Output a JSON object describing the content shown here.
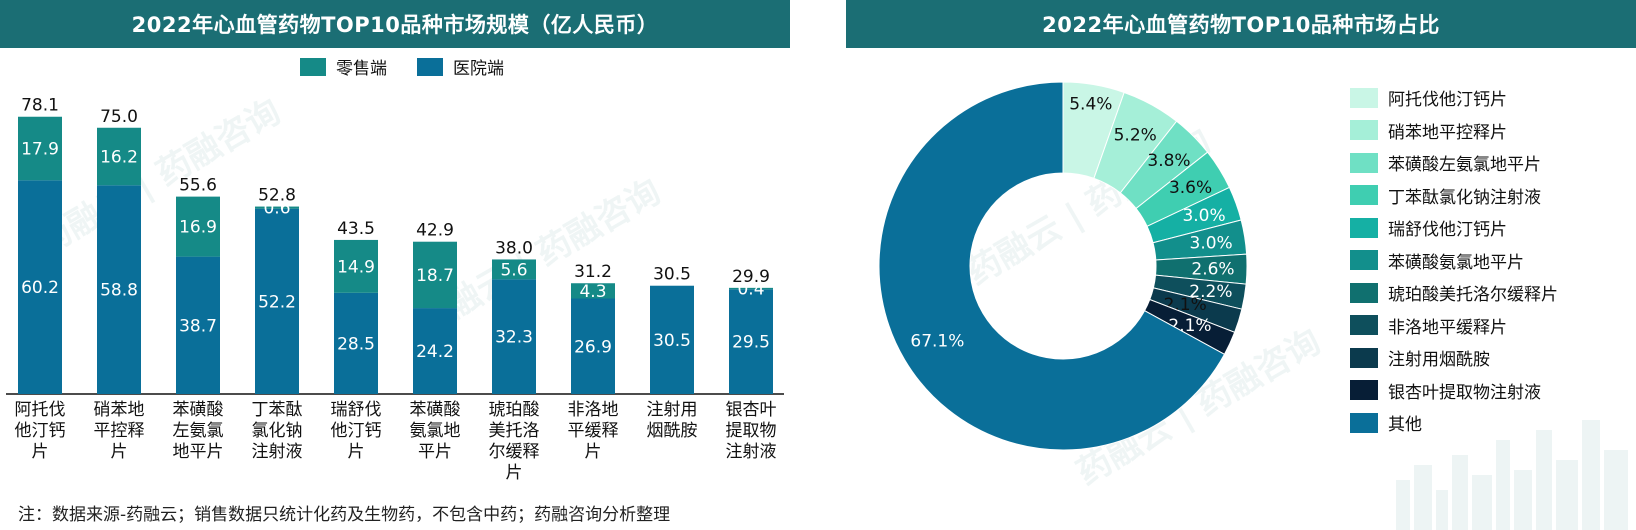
{
  "titles": {
    "bar": "2022年心血管药物TOP10品种市场规模（亿人民币）",
    "pie": "2022年心血管药物TOP10品种市场占比"
  },
  "footnote": "注：数据来源-药融云；销售数据只统计化药及生物药，不包含中药；药融咨询分析整理",
  "watermark_text": "药融云 | 药融咨询",
  "colors": {
    "header": "#1b6e74",
    "retail": "#158a87",
    "hospital": "#0a6f99"
  },
  "chart_data": [
    {
      "type": "bar",
      "stacked": true,
      "title": "2022年心血管药物TOP10品种市场规模（亿人民币）",
      "categories": [
        "阿托伐他汀钙片",
        "硝苯地平控释片",
        "苯磺酸左氨氯地平片",
        "丁苯酞氯化钠注射液",
        "瑞舒伐他汀钙片",
        "苯磺酸氨氯地平片",
        "琥珀酸美托洛尔缓释片",
        "非洛地平缓释片",
        "注射用烟酰胺",
        "银杏叶提取物注射液"
      ],
      "category_lines": [
        [
          "阿托伐",
          "他汀钙",
          "片"
        ],
        [
          "硝苯地",
          "平控释",
          "片"
        ],
        [
          "苯磺酸",
          "左氨氯",
          "地平片"
        ],
        [
          "丁苯酞",
          "氯化钠",
          "注射液"
        ],
        [
          "瑞舒伐",
          "他汀钙",
          "片"
        ],
        [
          "苯磺酸",
          "氨氯地",
          "平片"
        ],
        [
          "琥珀酸",
          "美托洛",
          "尔缓释",
          "片"
        ],
        [
          "非洛地",
          "平缓释",
          "片"
        ],
        [
          "注射用",
          "烟酰胺"
        ],
        [
          "银杏叶",
          "提取物",
          "注射液"
        ]
      ],
      "series": [
        {
          "name": "医院端",
          "color": "#0a6f99",
          "values": [
            60.2,
            58.8,
            38.7,
            52.2,
            28.5,
            24.2,
            32.3,
            26.9,
            30.5,
            29.5
          ]
        },
        {
          "name": "零售端",
          "color": "#158a87",
          "values": [
            17.9,
            16.2,
            16.9,
            0.6,
            14.9,
            18.7,
            5.6,
            4.3,
            null,
            0.4
          ]
        }
      ],
      "totals": [
        "78.1",
        "75.0",
        "55.6",
        "52.8",
        "43.5",
        "42.9",
        "38.0",
        "31.2",
        "30.5",
        "29.9"
      ],
      "legend": [
        "零售端",
        "医院端"
      ],
      "ylim": [
        0,
        82
      ]
    },
    {
      "type": "pie",
      "donut": true,
      "title": "2022年心血管药物TOP10品种市场占比",
      "labels": [
        "阿托伐他汀钙片",
        "硝苯地平控释片",
        "苯磺酸左氨氯地平片",
        "丁苯酞氯化钠注射液",
        "瑞舒伐他汀钙片",
        "苯磺酸氨氯地平片",
        "琥珀酸美托洛尔缓释片",
        "非洛地平缓释片",
        "注射用烟酰胺",
        "银杏叶提取物注射液",
        "其他"
      ],
      "values": [
        5.4,
        5.2,
        3.8,
        3.6,
        3.0,
        3.0,
        2.6,
        2.2,
        2.1,
        2.1,
        67.1
      ],
      "value_labels": [
        "5.4%",
        "5.2%",
        "3.8%",
        "3.6%",
        "3.0%",
        "3.0%",
        "2.6%",
        "2.2%",
        "2.1%",
        "2.1%",
        "67.1%"
      ],
      "colors": [
        "#c9f6e6",
        "#a5efd8",
        "#6fe0c4",
        "#3fceb1",
        "#15b0a4",
        "#128f8c",
        "#10706f",
        "#0e4f5c",
        "#0b3a4d",
        "#071e36",
        "#0a6f99"
      ],
      "label_colors": [
        "#111111",
        "#111111",
        "#111111",
        "#111111",
        "#ffffff",
        "#ffffff",
        "#ffffff",
        "#ffffff",
        "#111111",
        "#ffffff",
        "#ffffff"
      ]
    }
  ]
}
